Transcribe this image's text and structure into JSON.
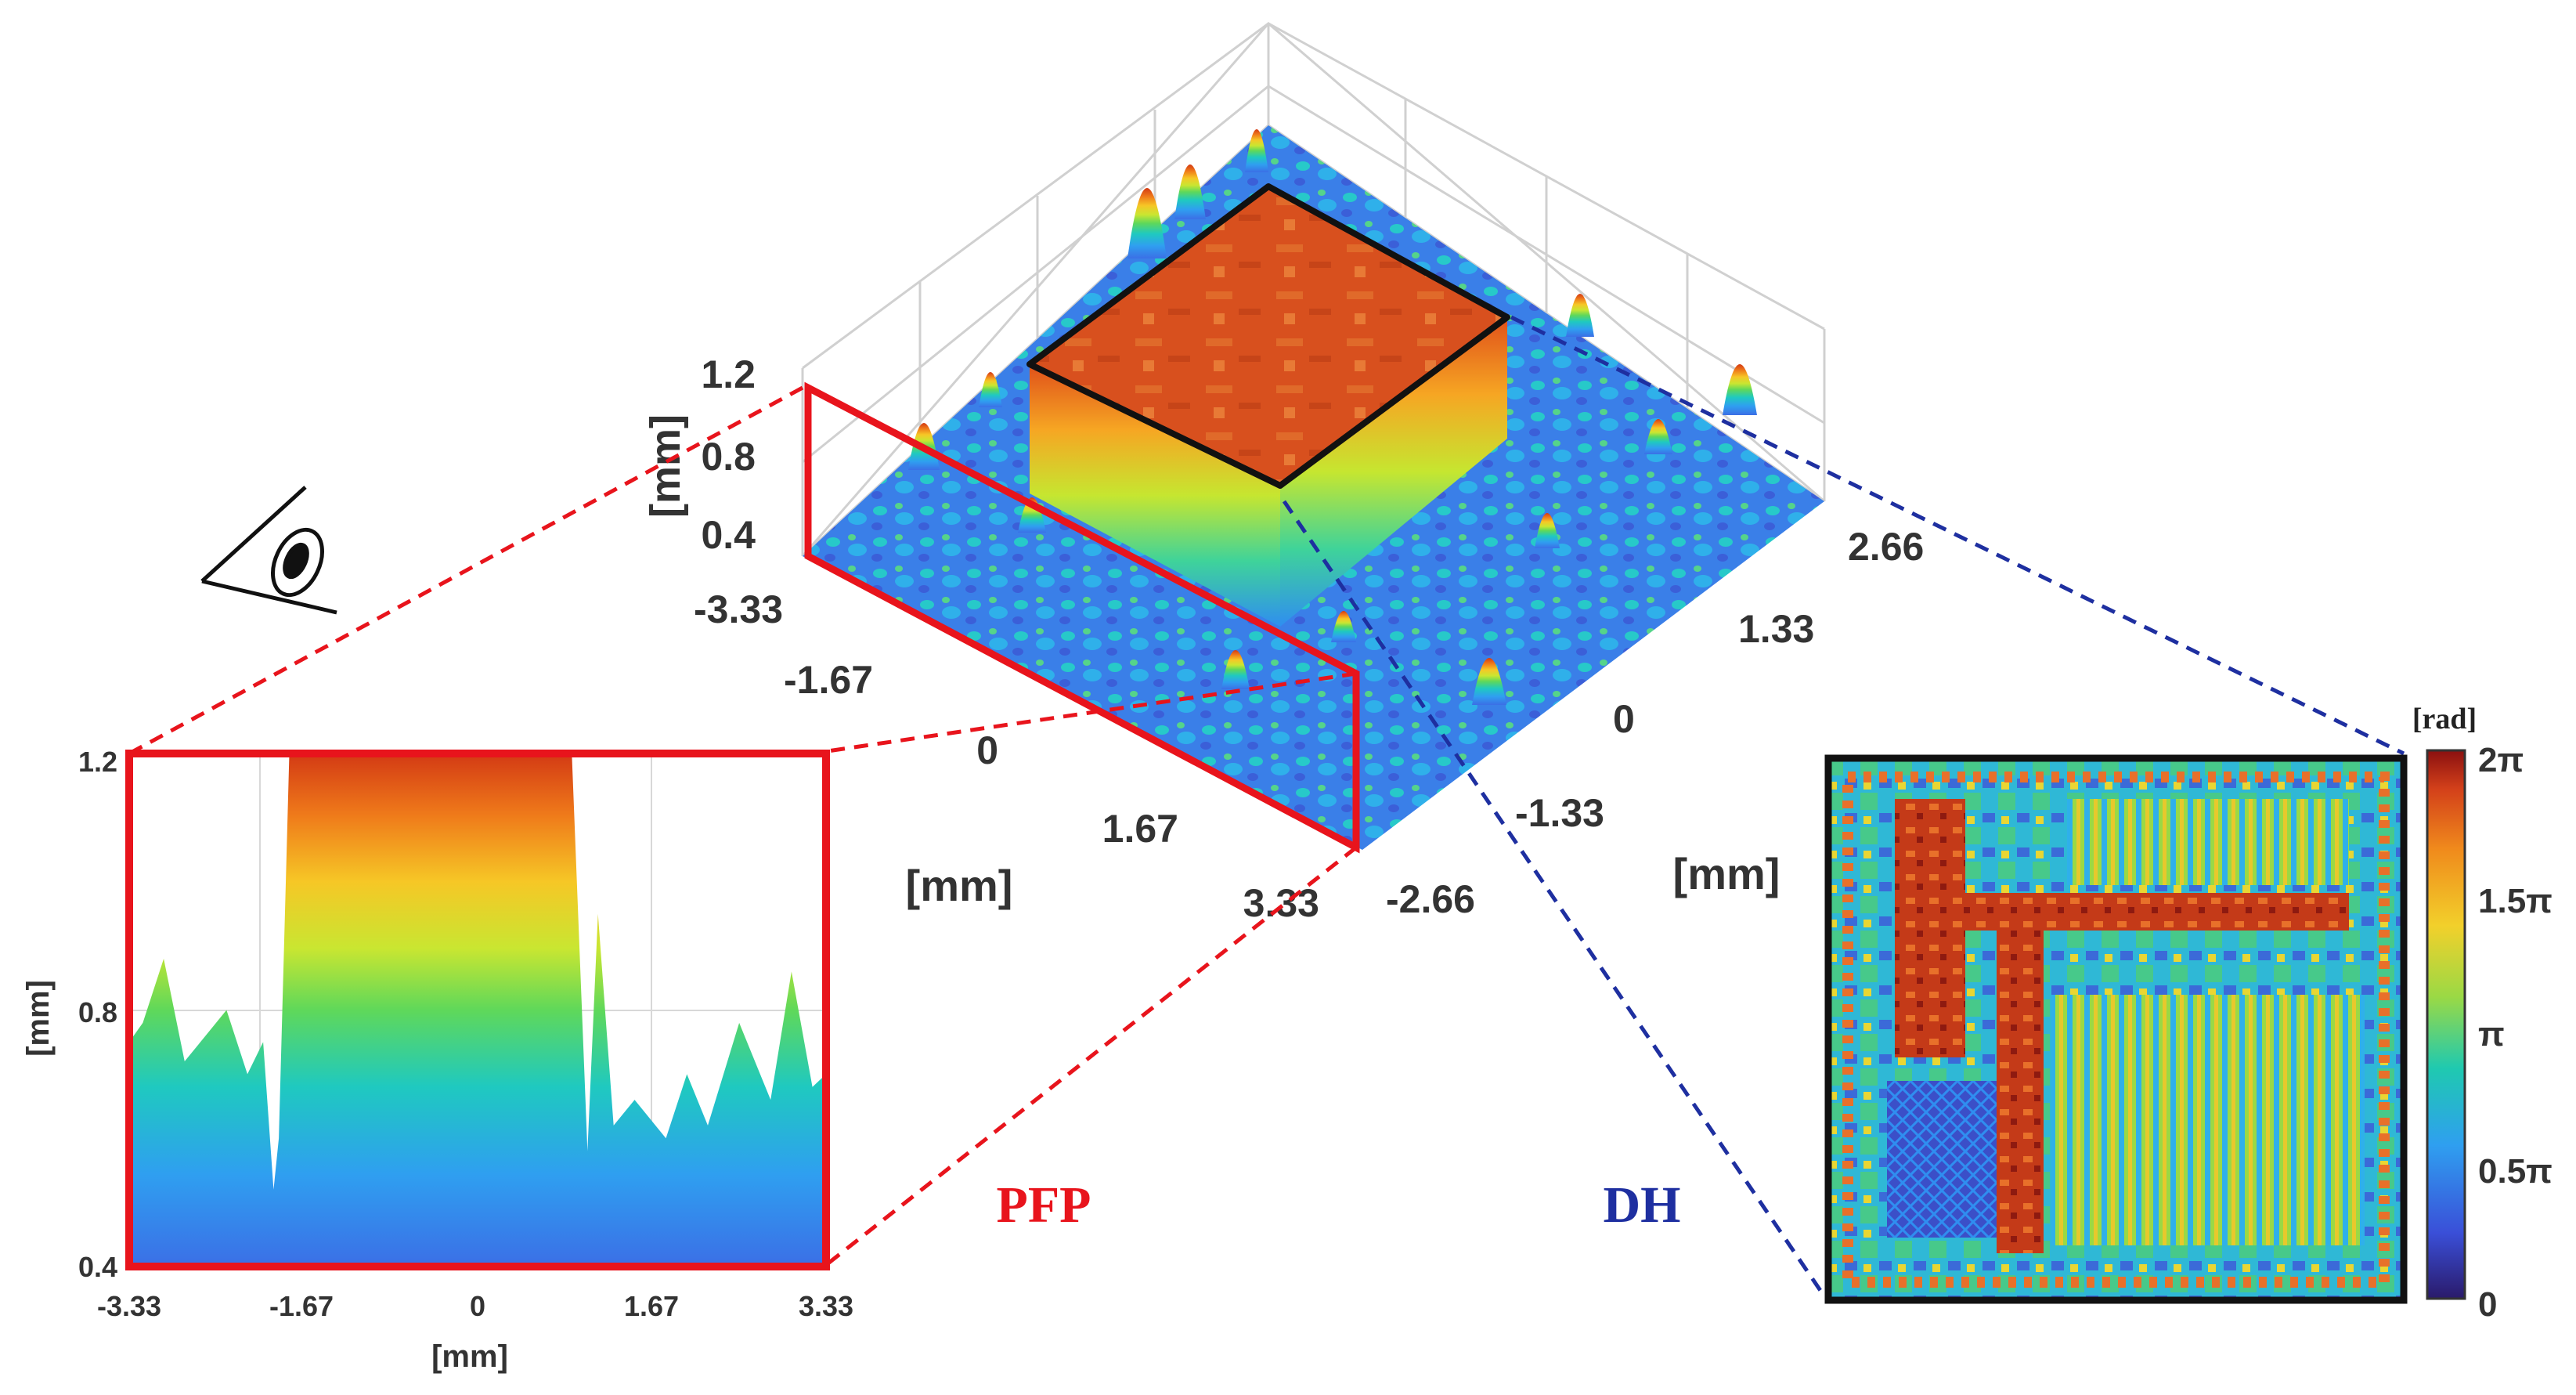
{
  "surface3d": {
    "z_ticks": [
      "1.2",
      "0.8",
      "0.4"
    ],
    "z_label": "[mm]",
    "x_ticks": [
      "-3.33",
      "-1.67",
      "0",
      "1.67",
      "3.33"
    ],
    "x_label": "[mm]",
    "y_ticks": [
      "-2.66",
      "-1.33",
      "0",
      "1.33",
      "2.66"
    ],
    "y_label": "[mm]"
  },
  "profile": {
    "y_ticks": [
      "1.2",
      "0.8",
      "0.4"
    ],
    "y_label": "[mm]",
    "x_ticks": [
      "-3.33",
      "-1.67",
      "0",
      "1.67",
      "3.33"
    ],
    "x_label": "[mm]"
  },
  "labels": {
    "pfp": "PFP",
    "dh": "DH"
  },
  "phase_map": {
    "unit": "[rad]",
    "ticks": [
      "2π",
      "1.5π",
      "π",
      "0.5π",
      "0"
    ]
  },
  "colors": {
    "pfp": "#e8141c",
    "dh": "#1e2fa0",
    "red_frame": "#e8141c",
    "blue_dash": "#1e2fa0"
  },
  "chart_data": {
    "type": "area",
    "title": "",
    "xlabel": "[mm]",
    "ylabel": "[mm]",
    "xlim": [
      -3.33,
      3.33
    ],
    "ylim": [
      0.4,
      1.2
    ],
    "x": [
      -3.33,
      -3.2,
      -3.0,
      -2.8,
      -2.6,
      -2.4,
      -2.2,
      -2.05,
      -1.95,
      -1.9,
      -1.8,
      0.9,
      1.05,
      1.15,
      1.3,
      1.5,
      1.8,
      2.0,
      2.2,
      2.5,
      2.8,
      3.0,
      3.2,
      3.33
    ],
    "y": [
      0.75,
      0.78,
      0.88,
      0.72,
      0.76,
      0.8,
      0.7,
      0.75,
      0.52,
      0.6,
      1.2,
      1.2,
      0.58,
      0.95,
      0.62,
      0.66,
      0.6,
      0.7,
      0.62,
      0.78,
      0.66,
      0.86,
      0.68,
      0.7
    ]
  }
}
